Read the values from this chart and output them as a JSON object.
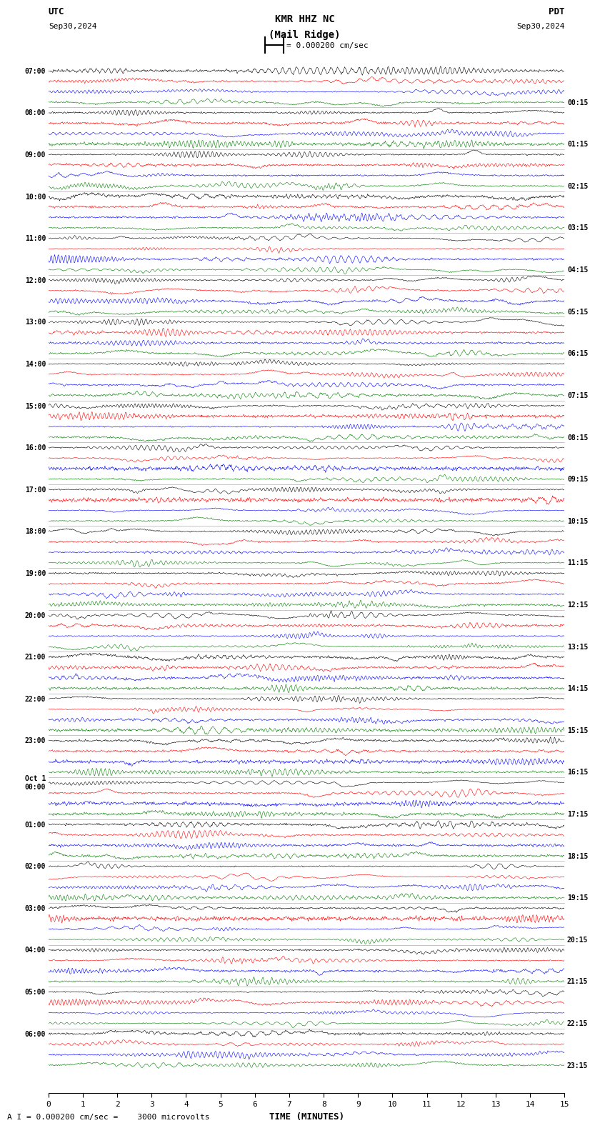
{
  "title_line1": "KMR HHZ NC",
  "title_line2": "(Mail Ridge)",
  "scale_text": "= 0.000200 cm/sec",
  "utc_label": "UTC",
  "pdt_label": "PDT",
  "date_left": "Sep30,2024",
  "date_right": "Sep30,2024",
  "xlabel": "TIME (MINUTES)",
  "footer_text": "A I = 0.000200 cm/sec =    3000 microvolts",
  "left_times": [
    "07:00",
    "08:00",
    "09:00",
    "10:00",
    "11:00",
    "12:00",
    "13:00",
    "14:00",
    "15:00",
    "16:00",
    "17:00",
    "18:00",
    "19:00",
    "20:00",
    "21:00",
    "22:00",
    "23:00",
    "Oct 1\n00:00",
    "01:00",
    "02:00",
    "03:00",
    "04:00",
    "05:00",
    "06:00"
  ],
  "right_times": [
    "00:15",
    "01:15",
    "02:15",
    "03:15",
    "04:15",
    "05:15",
    "06:15",
    "07:15",
    "08:15",
    "09:15",
    "10:15",
    "11:15",
    "12:15",
    "13:15",
    "14:15",
    "15:15",
    "16:15",
    "17:15",
    "18:15",
    "19:15",
    "20:15",
    "21:15",
    "22:15",
    "23:15"
  ],
  "num_rows": 24,
  "traces_per_row": 4,
  "colors": [
    "black",
    "red",
    "blue",
    "green"
  ],
  "bg_color": "white",
  "x_min": 0,
  "x_max": 15,
  "xticks": [
    0,
    1,
    2,
    3,
    4,
    5,
    6,
    7,
    8,
    9,
    10,
    11,
    12,
    13,
    14,
    15
  ],
  "seed": 42
}
